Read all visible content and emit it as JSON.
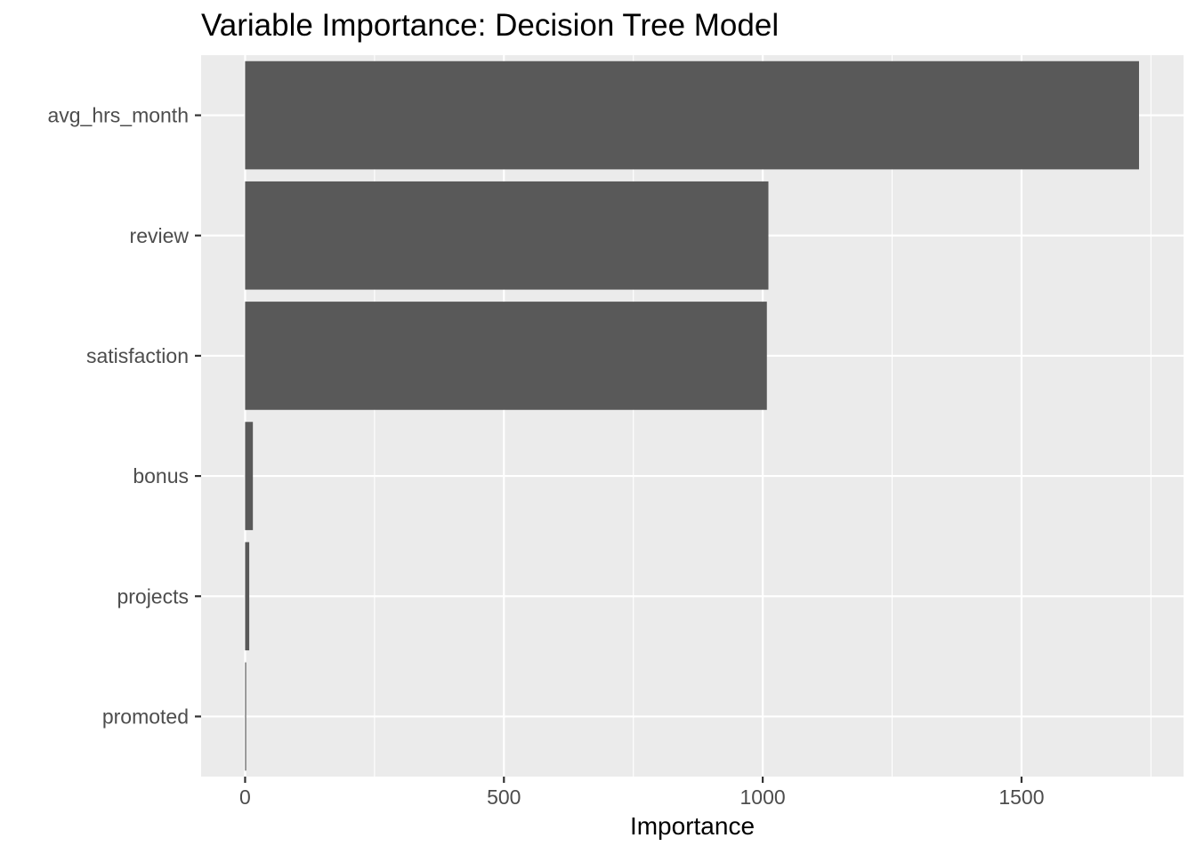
{
  "chart_data": {
    "type": "bar",
    "orientation": "horizontal",
    "title": "Variable Importance: Decision Tree Model",
    "xlabel": "Importance",
    "ylabel": "",
    "categories": [
      "avg_hrs_month",
      "review",
      "satisfaction",
      "bonus",
      "projects",
      "promoted"
    ],
    "values": [
      1727,
      1011,
      1008,
      15,
      8,
      2
    ],
    "xlim": [
      -85,
      1813
    ],
    "xticks": [
      0,
      500,
      1000,
      1500
    ],
    "xtick_labels": [
      "0",
      "500",
      "1000",
      "1500"
    ],
    "x_minor_ticks": [
      250,
      750,
      1250,
      1750
    ],
    "grid": true,
    "legend": "none",
    "colors": {
      "bar": "#595959",
      "panel": "#ebebeb",
      "grid": "#ffffff",
      "tick_text": "#4d4d4d",
      "tick_mark": "#333333",
      "title_text": "#000000"
    }
  }
}
